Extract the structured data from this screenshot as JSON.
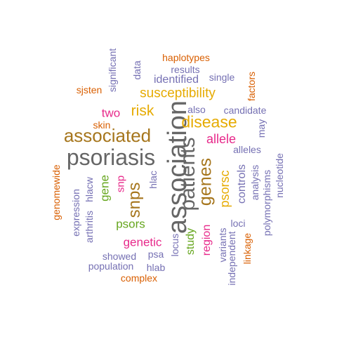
{
  "palette": {
    "dark_gray": "#666666",
    "olive_brown": "#a6761d",
    "gold": "#e6ab02",
    "magenta": "#e7298a",
    "green": "#66a61e",
    "purple": "#7570b3",
    "orange": "#d95f02"
  },
  "words": [
    {
      "text": "association",
      "color": "#666666"
    },
    {
      "text": "psoriasis",
      "color": "#666666"
    },
    {
      "text": "patients",
      "color": "#666666"
    },
    {
      "text": "associated",
      "color": "#a6761d"
    },
    {
      "text": "genes",
      "color": "#a6761d"
    },
    {
      "text": "snps",
      "color": "#a6761d"
    },
    {
      "text": "disease",
      "color": "#e6ab02"
    },
    {
      "text": "susceptibility",
      "color": "#e6ab02"
    },
    {
      "text": "risk",
      "color": "#e6ab02"
    },
    {
      "text": "psorsc",
      "color": "#e6ab02"
    },
    {
      "text": "allele",
      "color": "#e7298a"
    },
    {
      "text": "two",
      "color": "#e7298a"
    },
    {
      "text": "snp",
      "color": "#e7298a"
    },
    {
      "text": "genetic",
      "color": "#e7298a"
    },
    {
      "text": "region",
      "color": "#e7298a"
    },
    {
      "text": "linkage",
      "color": "#d95f02"
    },
    {
      "text": "gene",
      "color": "#66a61e"
    },
    {
      "text": "psors",
      "color": "#66a61e"
    },
    {
      "text": "study",
      "color": "#66a61e"
    },
    {
      "text": "haplotypes",
      "color": "#d95f02"
    },
    {
      "text": "sjsten",
      "color": "#d95f02"
    },
    {
      "text": "skin",
      "color": "#d95f02"
    },
    {
      "text": "genomewide",
      "color": "#d95f02"
    },
    {
      "text": "factors",
      "color": "#d95f02"
    },
    {
      "text": "complex",
      "color": "#d95f02"
    },
    {
      "text": "results",
      "color": "#7570b3"
    },
    {
      "text": "identified",
      "color": "#7570b3"
    },
    {
      "text": "single",
      "color": "#7570b3"
    },
    {
      "text": "data",
      "color": "#7570b3"
    },
    {
      "text": "significant",
      "color": "#7570b3"
    },
    {
      "text": "also",
      "color": "#7570b3"
    },
    {
      "text": "candidate",
      "color": "#7570b3"
    },
    {
      "text": "may",
      "color": "#7570b3"
    },
    {
      "text": "alleles",
      "color": "#7570b3"
    },
    {
      "text": "hlac",
      "color": "#7570b3"
    },
    {
      "text": "hlacw",
      "color": "#7570b3"
    },
    {
      "text": "expression",
      "color": "#7570b3"
    },
    {
      "text": "arthritis",
      "color": "#7570b3"
    },
    {
      "text": "controls",
      "color": "#7570b3"
    },
    {
      "text": "analysis",
      "color": "#7570b3"
    },
    {
      "text": "polymorphisms",
      "color": "#7570b3"
    },
    {
      "text": "nucleotide",
      "color": "#7570b3"
    },
    {
      "text": "loci",
      "color": "#7570b3"
    },
    {
      "text": "variants",
      "color": "#7570b3"
    },
    {
      "text": "independent",
      "color": "#7570b3"
    },
    {
      "text": "locus",
      "color": "#7570b3"
    },
    {
      "text": "psa",
      "color": "#7570b3"
    },
    {
      "text": "showed",
      "color": "#7570b3"
    },
    {
      "text": "population",
      "color": "#7570b3"
    },
    {
      "text": "hlab",
      "color": "#7570b3"
    }
  ]
}
